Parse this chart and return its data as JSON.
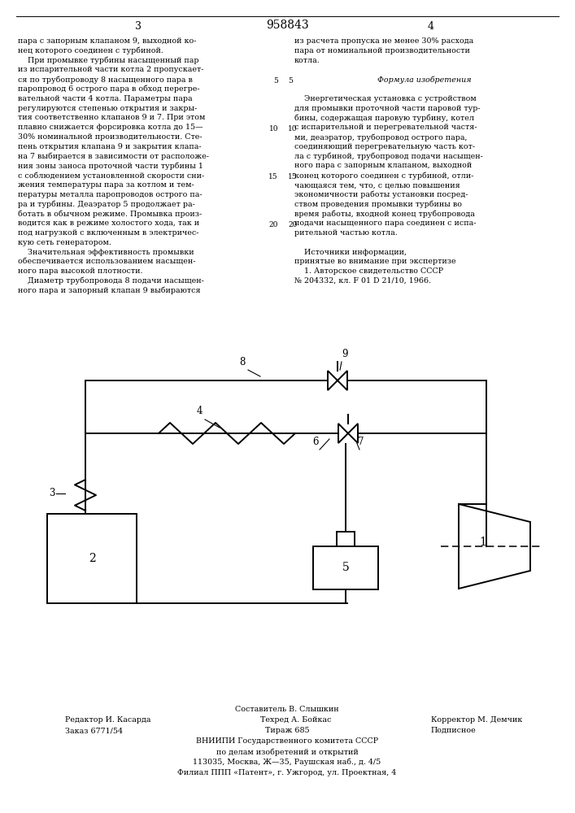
{
  "page_title": "958843",
  "page_numbers": [
    "3",
    "4"
  ],
  "background_color": "#ffffff",
  "line_color": "#000000",
  "text_color": "#000000",
  "left_column_text": [
    "пара с запорным клапаном 9, выходной ко-",
    "нец которого соединен с турбиной.",
    "    При промывке турбины насыщенный пар",
    "из испарительной части котла 2 пропускает-",
    "ся по трубопроводу 8 насыщенного пара в",
    "паропровод 6 острого пара в обход перегре-",
    "вательной части 4 котла. Параметры пара",
    "регулируются степенью открытия и закры-",
    "тия соответственно клапанов 9 и 7. При этом",
    "плавно снижается форсировка котла до 15—",
    "30% номинальной производительности. Сте-",
    "пень открытия клапана 9 и закрытия клапа-",
    "на 7 выбирается в зависимости от расположе-",
    "ния зоны заноса проточной части турбины 1",
    "с соблюдением установленной скорости сни-",
    "жения температуры пара за котлом и тем-",
    "пературы металла паропроводов острого па-",
    "ра и турбины. Деаэратор 5 продолжает ра-",
    "ботать в обычном режиме. Промывка произ-",
    "водится как в режиме холостого хода, так и",
    "под нагрузкой с включенным в электричес-",
    "кую сеть генератором.",
    "    Значительная эффективность промывки",
    "обеспечивается использованием насыщен-",
    "ного пара высокой плотности.",
    "    Диаметр трубопровода 8 подачи насыщен-",
    "ного пара и запорный клапан 9 выбираются"
  ],
  "right_column_text": [
    "из расчета пропуска не менее 30% расхода",
    "пара от номинальной производительности",
    "котла.",
    "",
    "    Формула изобретения",
    "",
    "    Энергетическая установка с устройством",
    "для промывки проточной части паровой тур-",
    "бины, содержащая паровую турбину, котел",
    "с испарительной и перегревательной частя-",
    "ми, деаэратор, трубопровод острого пара,",
    "соединяющий перегревательную часть кот-",
    "ла с турбиной, трубопровод подачи насыщен-",
    "ного пара с запорным клапаном, выходной",
    "конец которого соединен с турбиной, отли-",
    "чающаяся тем, что, с целью повышения",
    "экономичности работы установки посред-",
    "ством проведения промывки турбины во",
    "время работы, входной конец трубопровода",
    "подачи насыщенного пара соединен с испа-",
    "рительной частью котла.",
    "",
    "    Источники информации,",
    "принятые во внимание при экспертизе",
    "    1. Авторское свидетельство СССР",
    "№ 204332, кл. F 01 D 21/10, 1966."
  ],
  "footer_lines": [
    "Составитель В. Слышкин",
    "Редактор И. Касарда",
    "Техред А. Бойкас",
    "Корректор М. Демчик",
    "Заказ 6771/54",
    "Тираж 685",
    "Подписное",
    "ВНИИПИ Государственного комитета СССР",
    "по делам изобретений и открытий",
    "113035, Москва, Ж—35, Раушская наб., д. 4/5",
    "Филиал ППП «Патент», г. Ужгород, ул. Проектная, 4"
  ]
}
